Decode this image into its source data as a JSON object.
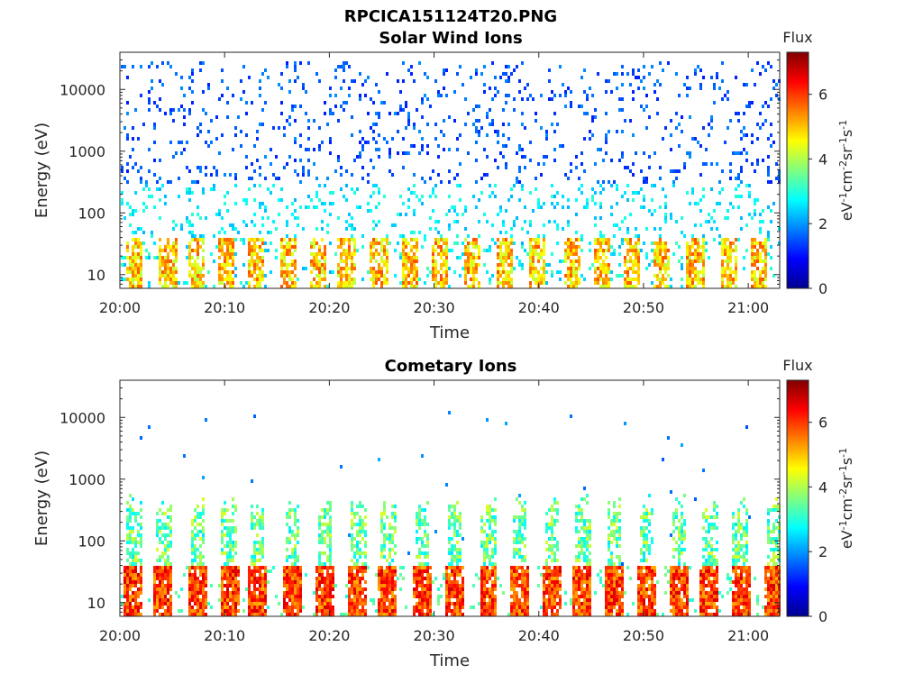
{
  "figure_title": "RPCICA151124T20.PNG",
  "chart_data": [
    {
      "type": "heatmap",
      "title": "Solar Wind Ions",
      "xlabel": "Time",
      "ylabel": "Energy (eV)",
      "x_ticks": [
        "20:00",
        "20:10",
        "20:20",
        "20:30",
        "20:40",
        "20:50",
        "21:00"
      ],
      "x_range": [
        "20:00",
        "21:03"
      ],
      "y_scale": "log",
      "y_ticks": [
        10,
        100,
        1000,
        10000
      ],
      "y_tick_labels": [
        "10",
        "100",
        "1000",
        "10000"
      ],
      "y_range": [
        6,
        40000
      ],
      "colorbar": {
        "title": "Flux",
        "label": "eV-1cm-2sr-1s-1",
        "colormap": "jet",
        "range": [
          0,
          7.3
        ],
        "ticks": [
          "0",
          "2",
          "4",
          "6"
        ]
      },
      "grid": false,
      "pattern": "sparse scattered counts (flux ~1-3) from ~100 eV to ~30000 eV; denser bursts (flux up to ~5-6) below ~40 eV recurring roughly every 3 minutes"
    },
    {
      "type": "heatmap",
      "title": "Cometary Ions",
      "xlabel": "Time",
      "ylabel": "Energy (eV)",
      "x_ticks": [
        "20:00",
        "20:10",
        "20:20",
        "20:30",
        "20:40",
        "20:50",
        "21:00"
      ],
      "x_range": [
        "20:00",
        "21:03"
      ],
      "y_scale": "log",
      "y_ticks": [
        10,
        100,
        1000,
        10000
      ],
      "y_tick_labels": [
        "10",
        "100",
        "1000",
        "10000"
      ],
      "y_range": [
        6,
        40000
      ],
      "colorbar": {
        "title": "Flux",
        "label": "eV-1cm-2sr-1s-1",
        "colormap": "jet",
        "range": [
          0,
          7.3
        ],
        "ticks": [
          "0",
          "2",
          "4",
          "6"
        ]
      },
      "grid": false,
      "pattern": "periodic vertical bursts roughly every 3 minutes, intense (flux ~6-7) below ~40 eV, extending up to ~300-600 eV at lower flux; isolated points up to ~13000 eV"
    }
  ]
}
